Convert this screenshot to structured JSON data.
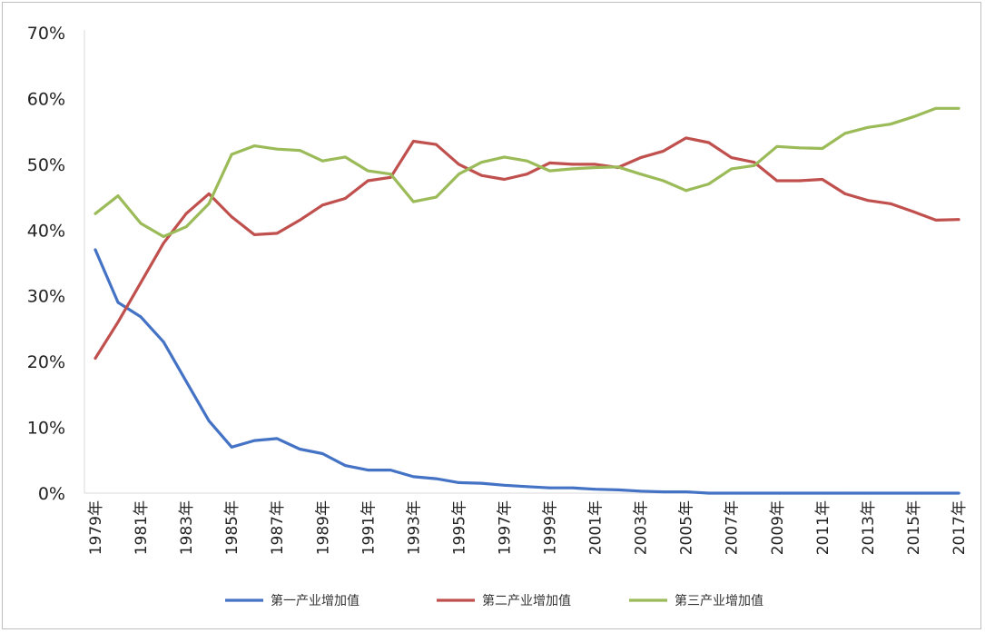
{
  "chart_data": {
    "type": "line",
    "title": "",
    "xlabel": "",
    "ylabel": "",
    "ylim": [
      0,
      70
    ],
    "yticks": [
      "0%",
      "10%",
      "20%",
      "30%",
      "40%",
      "50%",
      "60%",
      "70%"
    ],
    "x": [
      "1979年",
      "1980年",
      "1981年",
      "1982年",
      "1983年",
      "1984年",
      "1985年",
      "1986年",
      "1987年",
      "1988年",
      "1989年",
      "1990年",
      "1991年",
      "1992年",
      "1993年",
      "1994年",
      "1995年",
      "1996年",
      "1997年",
      "1998年",
      "1999年",
      "2000年",
      "2001年",
      "2002年",
      "2003年",
      "2004年",
      "2005年",
      "2006年",
      "2007年",
      "2008年",
      "2009年",
      "2010年",
      "2011年",
      "2012年",
      "2013年",
      "2014年",
      "2015年",
      "2016年",
      "2017年"
    ],
    "xtick_labels": [
      "1979年",
      "1981年",
      "1983年",
      "1985年",
      "1987年",
      "1989年",
      "1991年",
      "1993年",
      "1995年",
      "1997年",
      "1999年",
      "2001年",
      "2003年",
      "2005年",
      "2007年",
      "2009年",
      "2011年",
      "2013年",
      "2015年",
      "2017年"
    ],
    "grid": false,
    "legend_position": "bottom",
    "series": [
      {
        "name": "第一产业增加值",
        "color": "#4472c4",
        "values": [
          37,
          29,
          26.8,
          23,
          17,
          11,
          7,
          8,
          8.3,
          6.7,
          6,
          4.2,
          3.5,
          3.5,
          2.5,
          2.2,
          1.6,
          1.5,
          1.2,
          1,
          0.8,
          0.8,
          0.6,
          0.5,
          0.3,
          0.2,
          0.2,
          0,
          0,
          0,
          0,
          0,
          0,
          0,
          0,
          0,
          0,
          0,
          0
        ]
      },
      {
        "name": "第二产业增加值",
        "color": "#c0504d",
        "values": [
          20.5,
          26,
          32,
          38,
          42.5,
          45.5,
          42,
          39.3,
          39.5,
          41.5,
          43.8,
          44.8,
          47.5,
          48,
          53.5,
          53,
          50,
          48.3,
          47.7,
          48.5,
          50.2,
          50,
          50,
          49.5,
          51,
          52,
          54,
          53.3,
          51,
          50.3,
          47.5,
          47.5,
          47.7,
          45.5,
          44.5,
          44,
          42.8,
          41.5,
          41.6
        ]
      },
      {
        "name": "第三产业增加值",
        "color": "#9bbb59",
        "values": [
          42.5,
          45.2,
          41,
          39,
          40.5,
          44,
          51.5,
          52.8,
          52.3,
          52.1,
          50.5,
          51.1,
          49,
          48.5,
          44.3,
          45,
          48.5,
          50.3,
          51.1,
          50.5,
          49,
          49.3,
          49.5,
          49.6,
          48.5,
          47.5,
          46,
          47,
          49.3,
          49.8,
          52.7,
          52.5,
          52.4,
          54.7,
          55.6,
          56.1,
          57.2,
          58.5,
          58.5
        ]
      }
    ]
  }
}
